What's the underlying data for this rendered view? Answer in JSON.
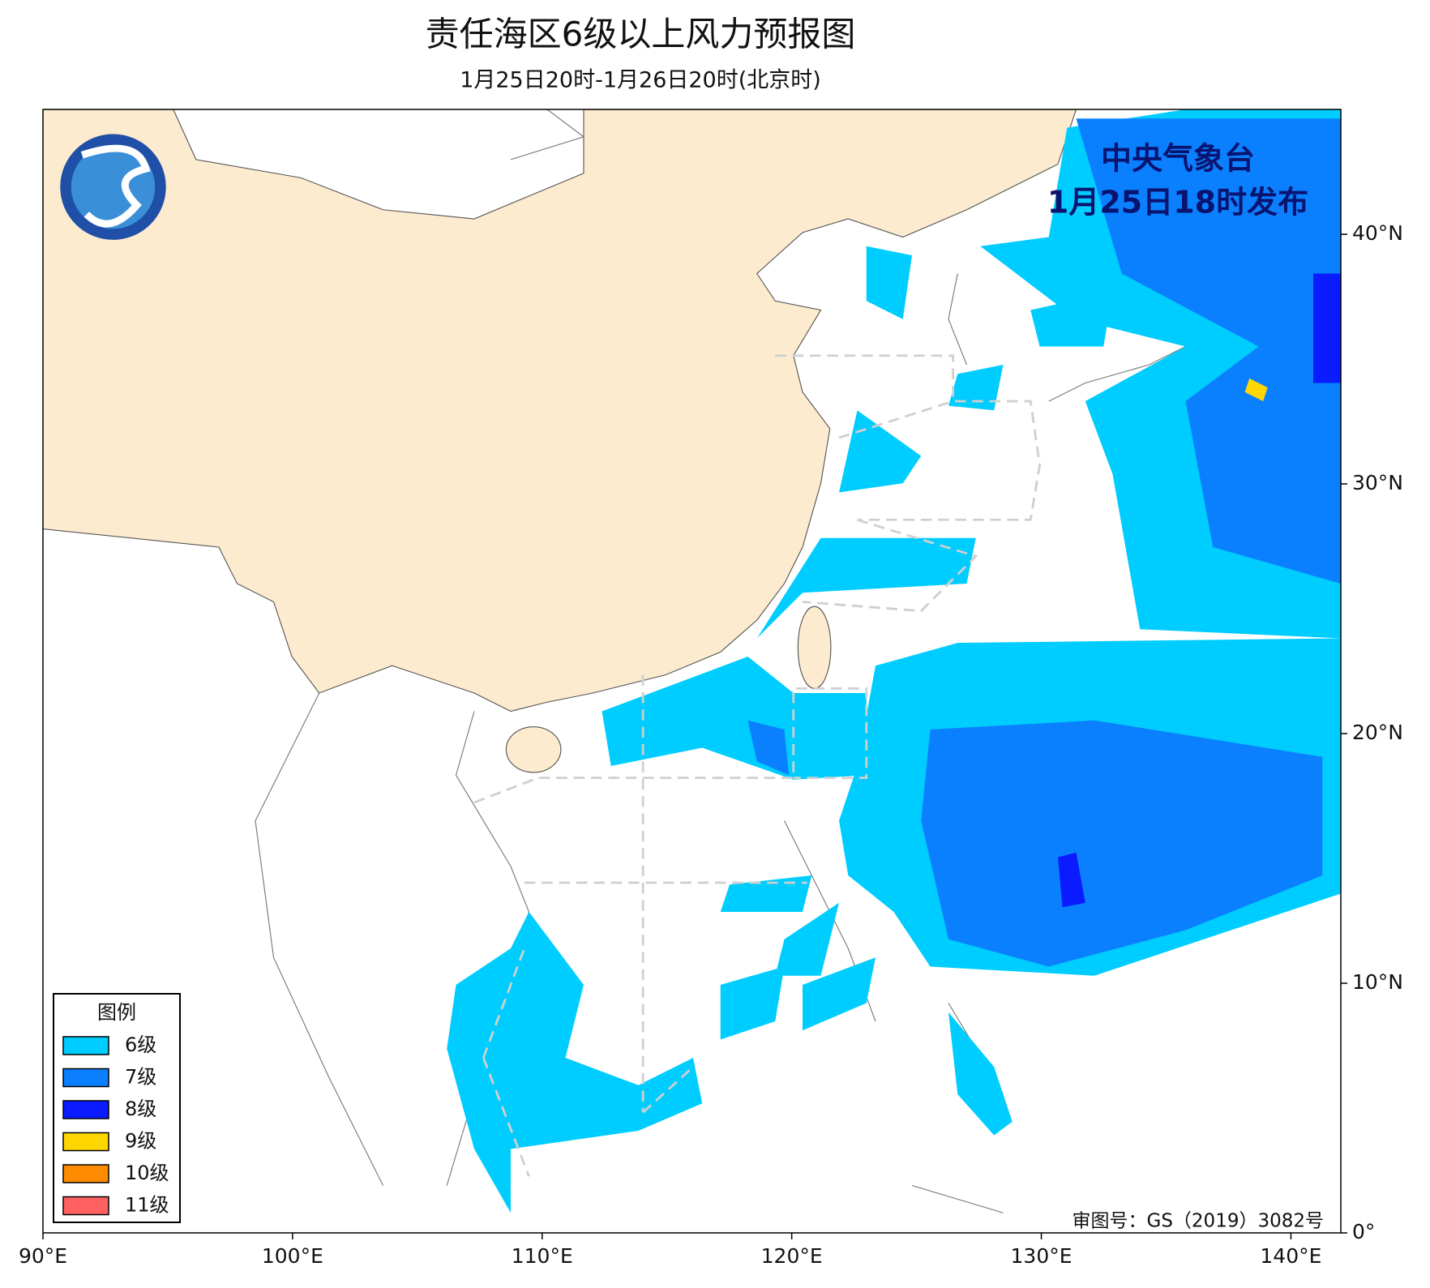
{
  "chart_data": {
    "type": "map",
    "title": "责任海区6级以上风力预报图",
    "subtitle": "1月25日20时-1月26日20时(北京时)",
    "issuer": "中央气象台",
    "issued": "1月25日18时发布",
    "approval": "审图号：GS（2019）3082号",
    "legend_title": "图例",
    "legend": [
      {
        "name": "6级",
        "color": "#00cdff"
      },
      {
        "name": "7级",
        "color": "#0a80ff"
      },
      {
        "name": "8级",
        "color": "#0a1bff"
      },
      {
        "name": "9级",
        "color": "#ffd700"
      },
      {
        "name": "10级",
        "color": "#ff8c00"
      },
      {
        "name": "11级",
        "color": "#ff6060"
      }
    ],
    "xlim": [
      90,
      142
    ],
    "ylim": [
      0,
      45
    ],
    "xticks": [
      {
        "value": 90,
        "label": "90°E"
      },
      {
        "value": 100,
        "label": "100°E"
      },
      {
        "value": 110,
        "label": "110°E"
      },
      {
        "value": 120,
        "label": "120°E"
      },
      {
        "value": 130,
        "label": "130°E"
      },
      {
        "value": 140,
        "label": "140°E"
      }
    ],
    "yticks": [
      {
        "value": 0,
        "label": "0°"
      },
      {
        "value": 10,
        "label": "10°N"
      },
      {
        "value": 20,
        "label": "20°N"
      },
      {
        "value": 30,
        "label": "30°N"
      },
      {
        "value": 40,
        "label": "40°N"
      }
    ]
  }
}
